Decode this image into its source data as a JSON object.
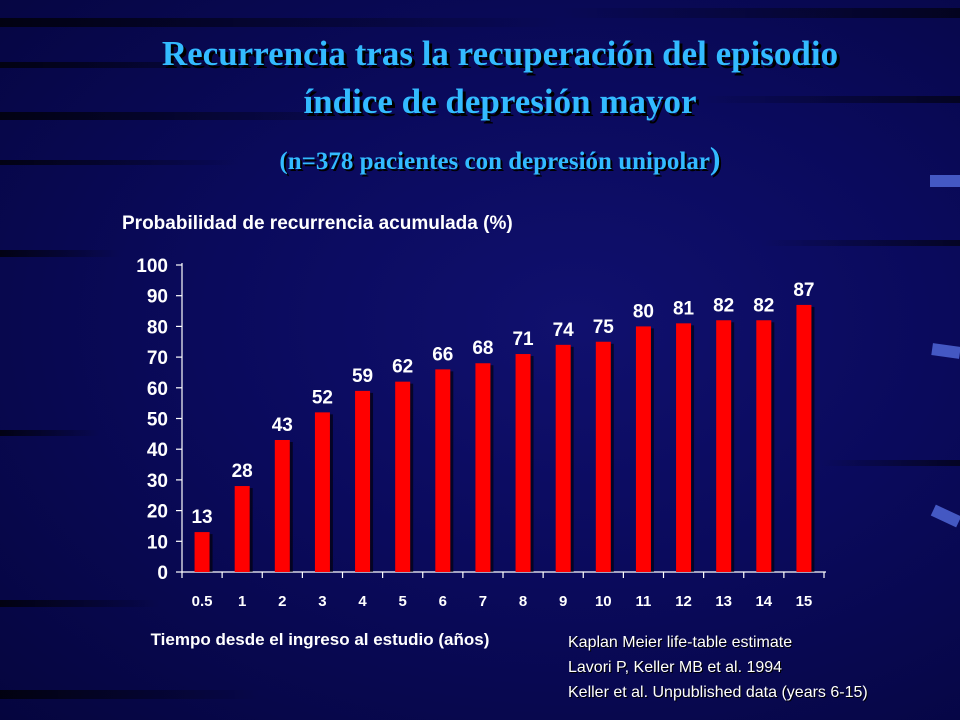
{
  "slide": {
    "title_line1": "Recurrencia tras la recuperación del episodio",
    "title_line2": "índice de depresión mayor",
    "subtitle": "(n=378 pacientes con depresión unipolar",
    "subtitle_close": ")"
  },
  "chart_data": {
    "type": "bar",
    "title": "Probabilidad de recurrencia acumulada (%)",
    "xlabel": "Tiempo desde el ingreso al estudio (años)",
    "ylabel": "",
    "categories": [
      "0.5",
      "1",
      "2",
      "3",
      "4",
      "5",
      "6",
      "7",
      "8",
      "9",
      "10",
      "11",
      "12",
      "13",
      "14",
      "15"
    ],
    "values": [
      13,
      28,
      43,
      52,
      59,
      62,
      66,
      68,
      71,
      74,
      75,
      80,
      81,
      82,
      82,
      87
    ],
    "ylim": [
      0,
      100
    ],
    "yticks": [
      0,
      10,
      20,
      30,
      40,
      50,
      60,
      70,
      80,
      90,
      100
    ],
    "bar_color": "#ff0000",
    "text_color": "#ffffff",
    "grid": false,
    "legend": "none",
    "data_labels": true
  },
  "notes": [
    "Kaplan Meier life-table estimate",
    "Lavori P, Keller MB et al. 1994",
    "Keller et al. Unpublished data (years 6-15)"
  ],
  "colors": {
    "title": "#33bbff",
    "background": "#0a0a5c"
  }
}
